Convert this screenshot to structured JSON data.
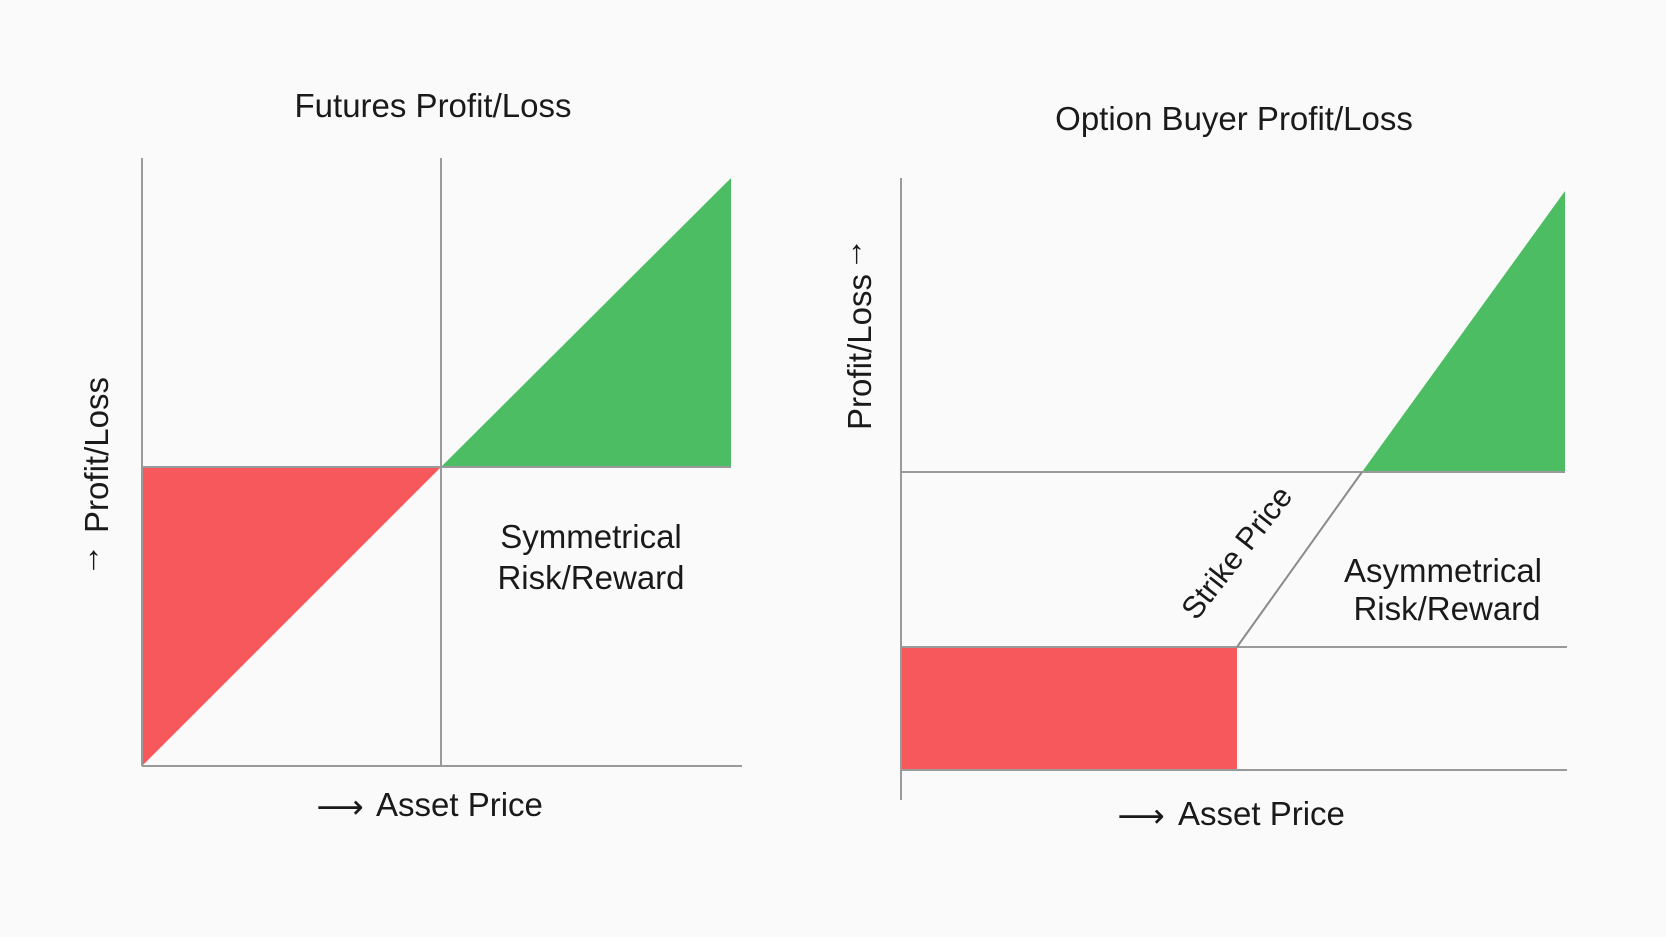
{
  "colors": {
    "profit": "#4cbd62",
    "loss": "#f7585c",
    "axis": "#9a9a9a",
    "background": "#fafafa",
    "text": "#1a1a1a"
  },
  "futures": {
    "title": "Futures Profit/Loss",
    "y_axis_label": "Profit/Loss",
    "y_axis_arrow": "→",
    "x_axis_label": "Asset Price",
    "x_axis_arrow": "⟶",
    "region_label_line1": "Symmetrical",
    "region_label_line2": "Risk/Reward"
  },
  "option_buyer": {
    "title": "Option Buyer Profit/Loss",
    "y_axis_label": "Profit/Loss",
    "y_axis_arrow": "→",
    "x_axis_label": "Asset Price",
    "x_axis_arrow": "⟶",
    "strike_label": "Strike Price",
    "region_label_line1": "Asymmetrical",
    "region_label_line2": "Risk/Reward"
  }
}
